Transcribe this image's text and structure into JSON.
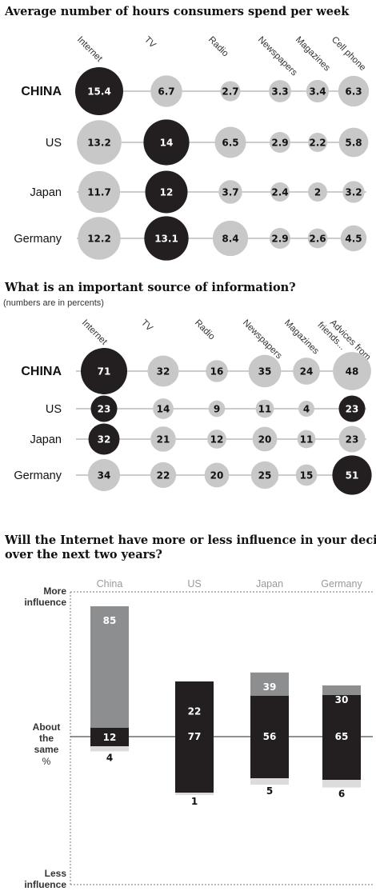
{
  "chart_data": [
    {
      "type": "bubble-matrix",
      "title": "Average number of hours consumers spend per week",
      "columns": [
        "Internet",
        "TV",
        "Radio",
        "Newspapers",
        "Magazines",
        "Cell phone"
      ],
      "rows": [
        {
          "name": "CHINA",
          "values": [
            15.4,
            6.7,
            2.7,
            3.3,
            3.4,
            6.3
          ],
          "highlight": 0
        },
        {
          "name": "US",
          "values": [
            13.2,
            14,
            6.5,
            2.9,
            2.2,
            5.8
          ],
          "highlight": 1
        },
        {
          "name": "Japan",
          "values": [
            11.7,
            12,
            3.7,
            2.4,
            2,
            3.2
          ],
          "highlight": 1
        },
        {
          "name": "Germany",
          "values": [
            12.2,
            13.1,
            8.4,
            2.9,
            2.6,
            4.5
          ],
          "highlight": 1
        }
      ]
    },
    {
      "type": "bubble-matrix",
      "title": "What is an important source of information?",
      "subtitle": "(numbers are in percents)",
      "columns": [
        "Internet",
        "TV",
        "Radio",
        "Newspapers",
        "Magazines",
        "Advices from friends..."
      ],
      "rows": [
        {
          "name": "CHINA",
          "values": [
            71,
            32,
            16,
            35,
            24,
            48
          ],
          "highlight": 0
        },
        {
          "name": "US",
          "values": [
            23,
            14,
            9,
            11,
            4,
            23
          ],
          "highlight": [
            0,
            5
          ]
        },
        {
          "name": "Japan",
          "values": [
            32,
            21,
            12,
            20,
            11,
            23
          ],
          "highlight": 0
        },
        {
          "name": "Germany",
          "values": [
            34,
            22,
            20,
            25,
            15,
            51
          ],
          "highlight": 5
        }
      ]
    },
    {
      "type": "diverging-stacked-bar",
      "title_lines": [
        "Will the Internet have more or less influence in your decisions",
        "over the next two years?"
      ],
      "categories": [
        "China",
        "US",
        "Japan",
        "Germany"
      ],
      "series": [
        {
          "name": "More influence",
          "values": [
            85,
            22,
            39,
            30
          ]
        },
        {
          "name": "About the same",
          "values": [
            12,
            77,
            56,
            65
          ]
        },
        {
          "name": "Less influence",
          "values": [
            4,
            1,
            5,
            6
          ]
        }
      ],
      "axis_labels": {
        "more": [
          "More",
          "influence"
        ],
        "same": [
          "About",
          "the",
          "same"
        ],
        "unit": "%",
        "less": [
          "Less",
          "influence"
        ]
      }
    }
  ],
  "colors": {
    "dark": "#231f20",
    "gray": "#c8c8c9",
    "bar_gray": "#8d8e90",
    "light": "#dcdcdd",
    "line": "#999999"
  }
}
